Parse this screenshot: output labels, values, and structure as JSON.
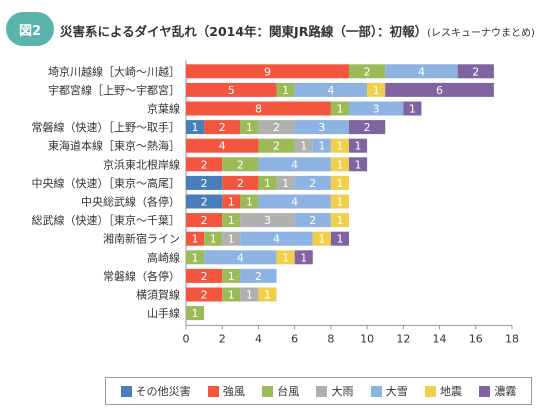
{
  "header": {
    "badge": "図2",
    "title": "災害系によるダイヤ乱れ（2014年：関東JR路線（一部）：初報）",
    "subtitle": "(レスキューナウまとめ)"
  },
  "chart_data": {
    "type": "bar",
    "orientation": "horizontal",
    "stacked": true,
    "categories": [
      "埼京川越線［大崎～川越］",
      "宇都宮線［上野～宇都宮］",
      "京葉線",
      "常磐線（快速）［上野～取手］",
      "東海道本線［東京～熱海］",
      "京浜東北根岸線",
      "中央線（快速）［東京～高尾］",
      "中央総武線（各停）",
      "総武線（快速）［東京～千葉］",
      "湘南新宿ライン",
      "高崎線",
      "常磐線（各停）",
      "横須賀線",
      "山手線"
    ],
    "series": [
      {
        "name": "その他災害",
        "color": "#4a7ebb",
        "values": [
          0,
          0,
          0,
          1,
          0,
          0,
          2,
          2,
          0,
          0,
          0,
          0,
          0,
          0
        ]
      },
      {
        "name": "強風",
        "color": "#f2563f",
        "values": [
          9,
          5,
          8,
          2,
          4,
          2,
          2,
          1,
          2,
          1,
          0,
          2,
          2,
          0
        ]
      },
      {
        "name": "台風",
        "color": "#9bbb59",
        "values": [
          2,
          1,
          1,
          1,
          2,
          2,
          1,
          1,
          1,
          1,
          1,
          1,
          1,
          1
        ]
      },
      {
        "name": "大雨",
        "color": "#b0b0b0",
        "values": [
          0,
          0,
          0,
          2,
          1,
          0,
          1,
          0,
          3,
          1,
          0,
          0,
          1,
          0
        ]
      },
      {
        "name": "大雪",
        "color": "#8db3e2",
        "values": [
          4,
          4,
          3,
          3,
          1,
          4,
          2,
          4,
          2,
          4,
          4,
          2,
          0,
          0
        ]
      },
      {
        "name": "地震",
        "color": "#f2cf4a",
        "values": [
          0,
          1,
          0,
          0,
          1,
          1,
          1,
          1,
          1,
          1,
          1,
          0,
          1,
          0
        ]
      },
      {
        "name": "濃霧",
        "color": "#8064a2",
        "values": [
          2,
          6,
          1,
          2,
          1,
          1,
          0,
          0,
          0,
          1,
          1,
          0,
          0,
          0
        ]
      }
    ],
    "xlim": [
      0,
      18
    ],
    "xticks": [
      0,
      2,
      4,
      6,
      8,
      10,
      12,
      14,
      16,
      18
    ],
    "legend_position": "bottom"
  }
}
